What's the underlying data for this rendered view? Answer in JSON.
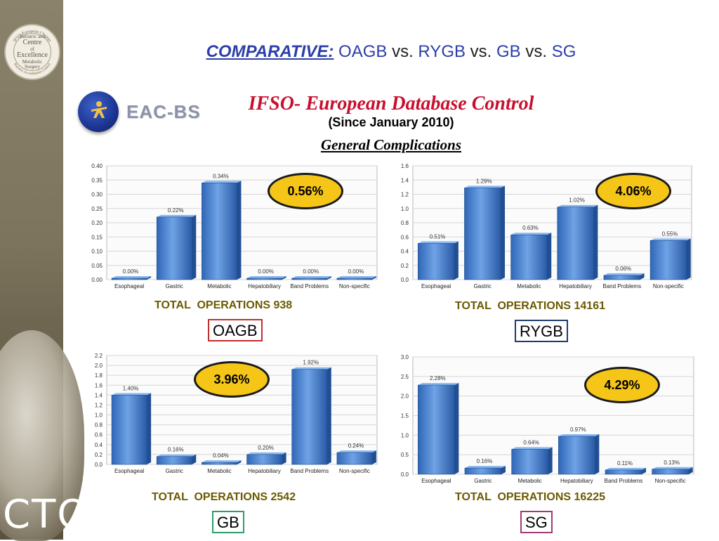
{
  "header": {
    "title_lead": "COMPARATIVE:",
    "procedures": [
      "OAGB",
      "RYGB",
      "GB",
      "SG"
    ],
    "vs": "vs."
  },
  "seal": {
    "ring_top": "IFSO-European Chapter",
    "ring_bottom": "Bariatric Accreditation Council",
    "line1": "Bariatric and",
    "line2": "Centre",
    "line3": "of",
    "line4": "Excellence",
    "line5": "Metabolic Surgery"
  },
  "logo": {
    "text": "EAC-BS"
  },
  "database": {
    "title": "IFSO- European Database Control",
    "subtitle": "(Since January 2010)",
    "section": "General Complications"
  },
  "side_logo_text": "CTO",
  "colors": {
    "bar": "#3d78c8",
    "bar_dark": "#204f92",
    "badge": "#f5c518",
    "title_blue": "#2c3ea8",
    "db_red": "#c8102e"
  },
  "chart_data": [
    {
      "type": "bar",
      "procedure": "OAGB",
      "frame_color": "#c0302f",
      "categories": [
        "Esophageal",
        "Gastric",
        "Metabolic",
        "Hepatobiliary",
        "Band Problems",
        "Non-specific"
      ],
      "values": [
        0.0,
        0.22,
        0.34,
        0.0,
        0.0,
        0.0
      ],
      "value_labels": [
        "0.00%",
        "0.22%",
        "0.34%",
        "0.00%",
        "0.00%",
        "0.00%"
      ],
      "ylim": [
        0,
        0.4
      ],
      "yticks": [
        "0.00",
        "0.05",
        "0.10",
        "0.15",
        "0.20",
        "0.25",
        "0.30",
        "0.35",
        "0.40"
      ],
      "total_rate": "0.56%",
      "total_label": "TOTAL  OPERATIONS 938",
      "grid": true
    },
    {
      "type": "bar",
      "procedure": "RYGB",
      "frame_color": "#1f3a6e",
      "categories": [
        "Esophageal",
        "Gastric",
        "Metabolic",
        "Hepatobiliary",
        "Band Problems",
        "Non-specific"
      ],
      "values": [
        0.51,
        1.29,
        0.63,
        1.02,
        0.06,
        0.55
      ],
      "value_labels": [
        "0.51%",
        "1.29%",
        "0.63%",
        "1.02%",
        "0.06%",
        "0.55%"
      ],
      "ylim": [
        0,
        1.6
      ],
      "yticks": [
        "0.0",
        "0.2",
        "0.4",
        "0.6",
        "0.8",
        "1.0",
        "1.2",
        "1.4",
        "1.6"
      ],
      "total_rate": "4.06%",
      "total_label": "TOTAL  OPERATIONS 14161",
      "grid": true
    },
    {
      "type": "bar",
      "procedure": "GB",
      "frame_color": "#2e9e6b",
      "categories": [
        "Esophageal",
        "Gastric",
        "Metabolic",
        "Hepatobiliary",
        "Band Problems",
        "Non-specific"
      ],
      "values": [
        1.4,
        0.16,
        0.04,
        0.2,
        1.92,
        0.24
      ],
      "value_labels": [
        "1.40%",
        "0.16%",
        "0.04%",
        "0.20%",
        "1.92%",
        "0.24%"
      ],
      "ylim": [
        0,
        2.2
      ],
      "yticks": [
        "0.0",
        "0.2",
        "0.4",
        "0.6",
        "0.8",
        "1.0",
        "1.2",
        "1.4",
        "1.6",
        "1.8",
        "2.0",
        "2.2"
      ],
      "total_rate": "3.96%",
      "total_label": "TOTAL  OPERATIONS 2542",
      "grid": true
    },
    {
      "type": "bar",
      "procedure": "SG",
      "frame_color": "#a23a78",
      "categories": [
        "Esophageal",
        "Gastric",
        "Metabolic",
        "Hepatobiliary",
        "Band Problems",
        "Non-specific"
      ],
      "values": [
        2.28,
        0.16,
        0.64,
        0.97,
        0.11,
        0.13
      ],
      "value_labels": [
        "2.28%",
        "0.16%",
        "0.64%",
        "0.97%",
        "0.11%",
        "0.13%"
      ],
      "ylim": [
        0,
        3.0
      ],
      "yticks": [
        "0.0",
        "0.5",
        "1.0",
        "1.5",
        "2.0",
        "2.5",
        "3.0"
      ],
      "total_rate": "4.29%",
      "total_label": "TOTAL  OPERATIONS 16225",
      "grid": true
    }
  ]
}
